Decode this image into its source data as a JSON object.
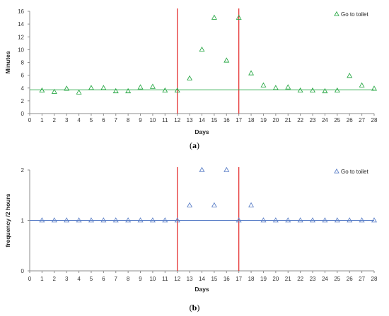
{
  "chart_data": [
    {
      "type": "scatter",
      "caption_open": "(",
      "caption_letter": "a",
      "caption_close": ")",
      "xlabel": "Days",
      "ylabel": "Minutes",
      "xlim": [
        0,
        28
      ],
      "ylim": [
        0,
        16
      ],
      "xticks": [
        0,
        1,
        2,
        3,
        4,
        5,
        6,
        7,
        8,
        9,
        10,
        11,
        12,
        13,
        14,
        15,
        16,
        17,
        18,
        19,
        20,
        21,
        22,
        23,
        24,
        25,
        26,
        27,
        28
      ],
      "yticks": [
        0,
        2,
        4,
        6,
        8,
        10,
        12,
        14,
        16
      ],
      "grid": false,
      "legend_position": "top-right",
      "marker": "triangle-open",
      "color": "#2EAA4A",
      "baseline": 3.7,
      "baseline_color": "#2EAA4A",
      "vlines": [
        12,
        17
      ],
      "vline_color": "#E53333",
      "series": [
        {
          "name": "Go to toilet",
          "x": [
            1,
            2,
            3,
            4,
            5,
            6,
            7,
            8,
            9,
            10,
            11,
            12,
            13,
            14,
            15,
            16,
            17,
            18,
            19,
            20,
            21,
            22,
            23,
            24,
            25,
            26,
            27,
            28
          ],
          "y": [
            3.6,
            3.4,
            3.9,
            3.3,
            4.0,
            4.0,
            3.5,
            3.5,
            4.1,
            4.2,
            3.6,
            3.6,
            5.5,
            10.0,
            15.0,
            8.3,
            15.0,
            6.3,
            4.4,
            4.0,
            4.1,
            3.6,
            3.6,
            3.5,
            3.6,
            5.9,
            4.4,
            3.9
          ]
        }
      ]
    },
    {
      "type": "scatter",
      "caption_open": "(",
      "caption_letter": "b",
      "caption_close": ")",
      "xlabel": "Days",
      "ylabel": "frequency /2 hours",
      "xlim": [
        0,
        28
      ],
      "ylim": [
        0,
        2
      ],
      "xticks": [
        0,
        1,
        2,
        3,
        4,
        5,
        6,
        7,
        8,
        9,
        10,
        11,
        12,
        13,
        14,
        15,
        16,
        17,
        18,
        19,
        20,
        21,
        22,
        23,
        24,
        25,
        26,
        27,
        28
      ],
      "yticks": [
        0,
        1,
        2
      ],
      "grid": false,
      "legend_position": "top-right",
      "marker": "triangle-open",
      "color": "#5B7FC7",
      "baseline": 1,
      "baseline_color": "#5B7FC7",
      "vlines": [
        12,
        17
      ],
      "vline_color": "#E53333",
      "series": [
        {
          "name": "Go to toilet",
          "x": [
            1,
            2,
            3,
            4,
            5,
            6,
            7,
            8,
            9,
            10,
            11,
            12,
            13,
            14,
            15,
            16,
            17,
            18,
            19,
            20,
            21,
            22,
            23,
            24,
            25,
            26,
            27,
            28
          ],
          "y": [
            1,
            1,
            1,
            1,
            1,
            1,
            1,
            1,
            1,
            1,
            1,
            1,
            1.3,
            2,
            1.3,
            2,
            1,
            1.3,
            1,
            1,
            1,
            1,
            1,
            1,
            1,
            1,
            1,
            1
          ]
        }
      ]
    }
  ]
}
